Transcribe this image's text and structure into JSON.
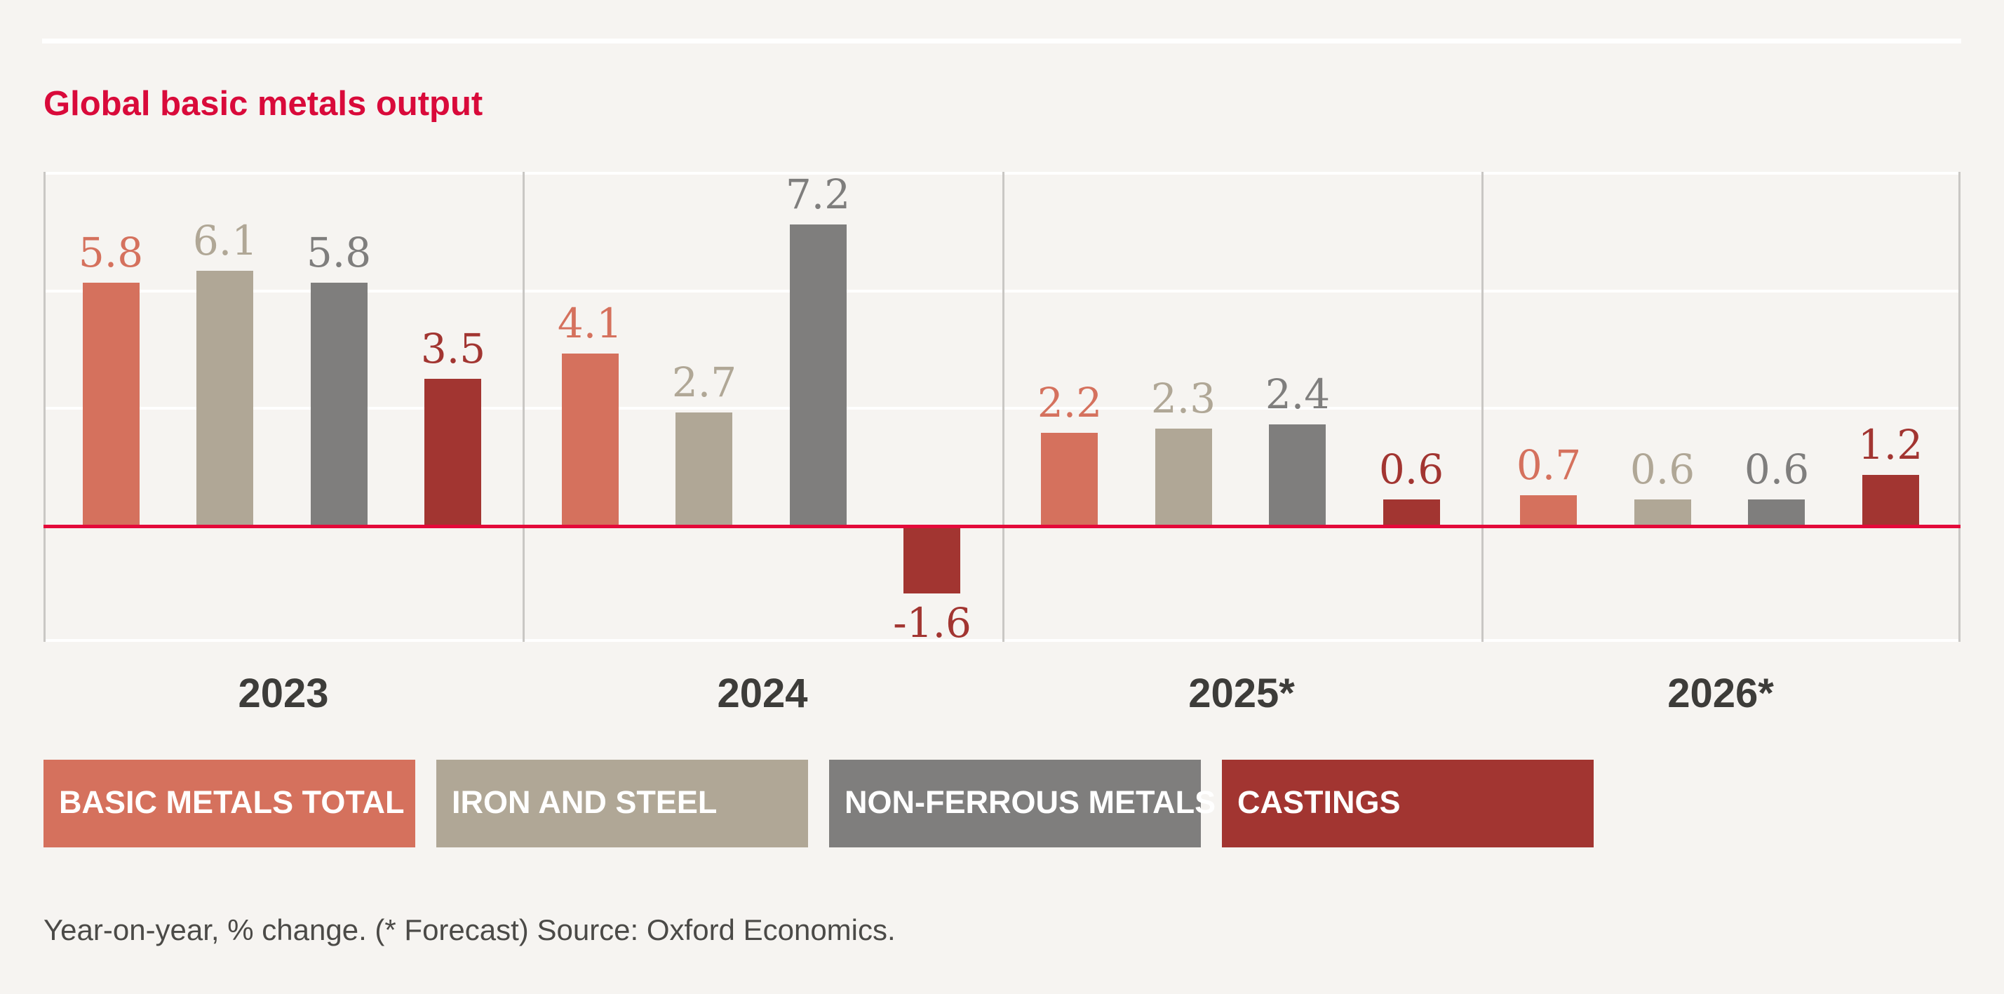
{
  "card": {
    "title": "Global basic metals output",
    "footnote": "Year-on-year, % change. (* Forecast) Source: Oxford Economics."
  },
  "colors": {
    "background": "#f6f4f1",
    "title": "#d90a3a",
    "zero_line": "#e40a3a",
    "grid_line": "#ffffff",
    "separator_line": "#c9c7c4",
    "year_label": "#3d3c39",
    "footnote_text": "#4b4a47",
    "legend_text": "#ffffff"
  },
  "chart_data": {
    "type": "bar",
    "categories": [
      "2023",
      "2024",
      "2025*",
      "2026*"
    ],
    "series": [
      {
        "name": "BASIC METALS TOTAL",
        "color": "#d5715d",
        "values": [
          5.8,
          4.1,
          2.2,
          0.7
        ]
      },
      {
        "name": "IRON AND STEEL",
        "color": "#b0a796",
        "values": [
          6.1,
          2.7,
          2.3,
          0.6
        ]
      },
      {
        "name": "NON-FERROUS METALS",
        "color": "#7f7e7d",
        "values": [
          5.8,
          7.2,
          2.4,
          0.6
        ]
      },
      {
        "name": "CASTINGS",
        "color": "#a23531",
        "values": [
          3.5,
          -1.6,
          0.6,
          1.2
        ]
      }
    ],
    "ylim": [
      -2.8,
      8.5
    ],
    "grid": "horizontal white gridlines at thirds between zero and top; red horizontal line at zero; white lines at plot top and bottom; gray vertical separators between year groups",
    "legend_position": "bottom-left, colored boxes with white uppercase labels",
    "value_labels": "one decimal, colored like its series, above positive bars and below negative bars"
  }
}
